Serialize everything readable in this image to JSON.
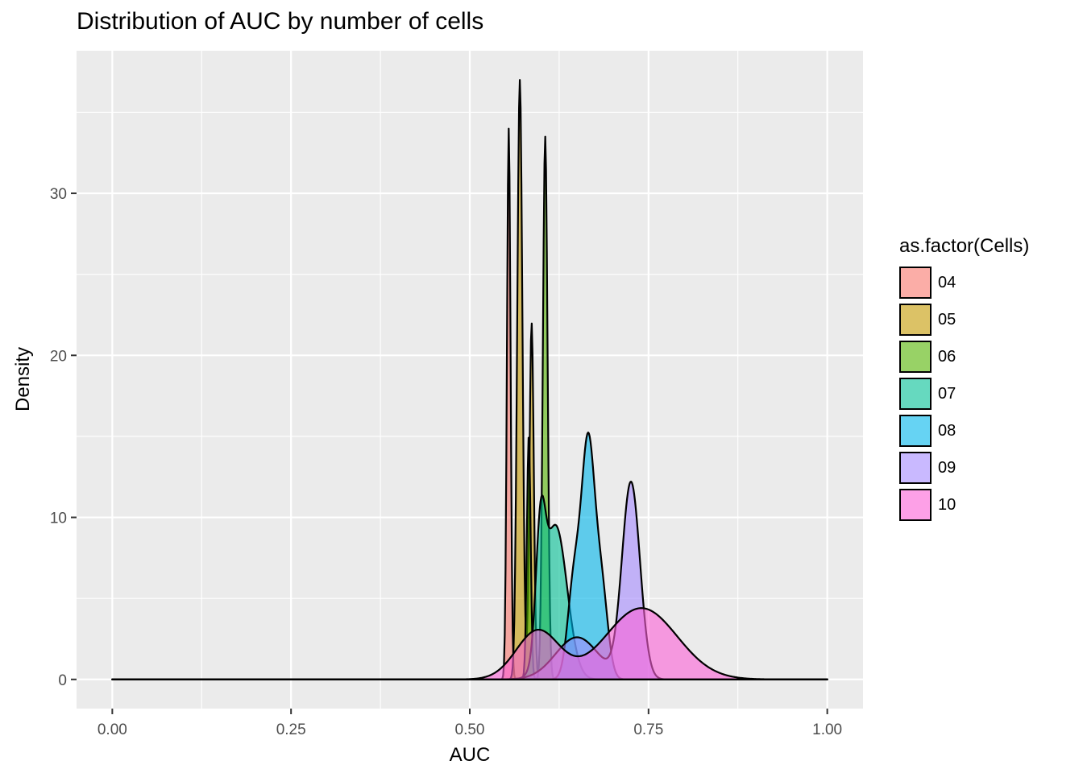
{
  "chart_data": {
    "type": "area",
    "title": "Distribution of AUC by number of cells",
    "xlabel": "AUC",
    "ylabel": "Density",
    "xlim": [
      -0.05,
      1.05
    ],
    "ylim": [
      -1.8,
      38.8
    ],
    "x_ticks": [
      0.0,
      0.25,
      0.5,
      0.75,
      1.0
    ],
    "x_tick_labels": [
      "0.00",
      "0.25",
      "0.50",
      "0.75",
      "1.00"
    ],
    "y_ticks": [
      0,
      10,
      20,
      30
    ],
    "y_tick_labels": [
      "0",
      "10",
      "20",
      "30"
    ],
    "grid": true,
    "legend": {
      "title": "as.factor(Cells)",
      "placement": "right"
    },
    "x_range": [
      0.0,
      1.0
    ],
    "series": [
      {
        "name": "04",
        "color": "#F8766D",
        "components": [
          [
            34,
            0.5545,
            0.0025
          ]
        ]
      },
      {
        "name": "05",
        "color": "#C49A00",
        "components": [
          [
            37,
            0.57,
            0.0036
          ],
          [
            22,
            0.5865,
            0.003
          ]
        ]
      },
      {
        "name": "06",
        "color": "#53B400",
        "components": [
          [
            15,
            0.5825,
            0.0026
          ],
          [
            33.5,
            0.6055,
            0.0033
          ]
        ]
      },
      {
        "name": "07",
        "color": "#00C094",
        "components": [
          [
            7,
            0.599,
            0.0065
          ],
          [
            9.5,
            0.62,
            0.016
          ]
        ]
      },
      {
        "name": "08",
        "color": "#00B6EB",
        "components": [
          [
            6,
            0.646,
            0.009
          ],
          [
            14,
            0.6655,
            0.0092
          ],
          [
            5.5,
            0.684,
            0.009
          ]
        ]
      },
      {
        "name": "09",
        "color": "#A58AFF",
        "components": [
          [
            12.1,
            0.7255,
            0.0125
          ],
          [
            2.6,
            0.65,
            0.03
          ]
        ]
      },
      {
        "name": "10",
        "color": "#FB61D7",
        "components": [
          [
            3.0,
            0.595,
            0.03
          ],
          [
            4.4,
            0.74,
            0.05
          ]
        ]
      }
    ]
  }
}
